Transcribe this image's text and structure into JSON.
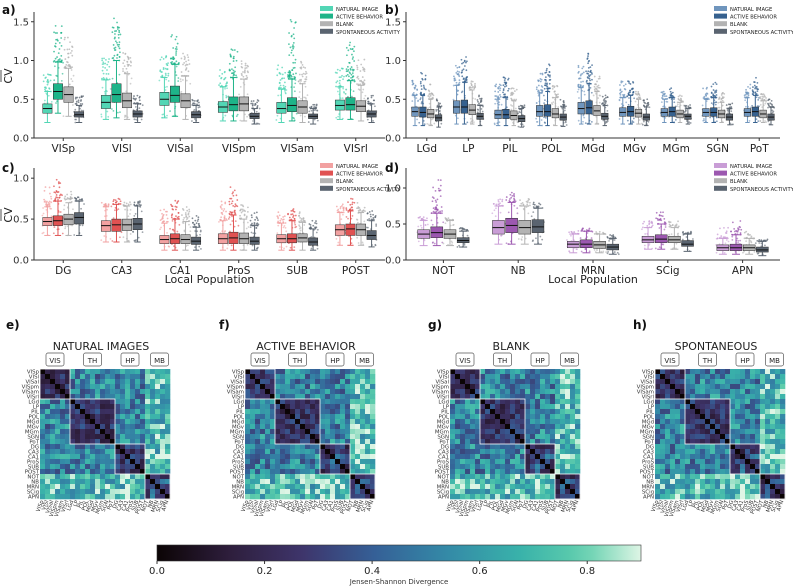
{
  "figure": {
    "legend_entries": [
      "NATURAL IMAGE",
      "ACTIVE BEHAVIOR",
      "BLANK",
      "SPONTANEOUS ACTIVITY"
    ],
    "colorbar": {
      "label": "Jensen-Shannon Divergence",
      "ticks": [
        "0.0",
        "0.2",
        "0.4",
        "0.6",
        "0.8"
      ],
      "range": [
        0,
        0.9
      ]
    },
    "region_labels": [
      "VIS",
      "TH",
      "HP",
      "MB"
    ],
    "matrix_labels": [
      "VISp",
      "VISl",
      "VISal",
      "VISpm",
      "VISam",
      "VISrl",
      "LGd",
      "LP",
      "PIL",
      "POL",
      "MGd",
      "MGv",
      "MGm",
      "SGN",
      "PoT",
      "DG",
      "CA3",
      "CA1",
      "ProS",
      "SUB",
      "POST",
      "NOT",
      "NB",
      "MRN",
      "SCig",
      "APN"
    ]
  },
  "chart_data": [
    {
      "panel": "a)",
      "type": "box",
      "ylabel": "CV",
      "xlabel": "",
      "ylim": [
        0,
        1.6
      ],
      "yticks": [
        "0.0",
        "0.5",
        "1.0",
        "1.5"
      ],
      "palette": [
        "#52d6b5",
        "#1eb489",
        "#b3b3b3",
        "#5a6470"
      ],
      "categories": [
        "VISp",
        "VISl",
        "VISal",
        "VISpm",
        "VISam",
        "VISrl"
      ],
      "series": [
        {
          "name": "NATURAL IMAGE",
          "medians": [
            0.38,
            0.46,
            0.5,
            0.4,
            0.38,
            0.42
          ],
          "q1": [
            0.32,
            0.38,
            0.42,
            0.33,
            0.32,
            0.36
          ],
          "q3": [
            0.44,
            0.55,
            0.59,
            0.47,
            0.46,
            0.49
          ],
          "whisk_lo": [
            0.2,
            0.24,
            0.26,
            0.22,
            0.2,
            0.24
          ],
          "whisk_hi": [
            0.6,
            0.75,
            0.78,
            0.66,
            0.63,
            0.66
          ],
          "max": [
            0.85,
            1.05,
            1.1,
            0.9,
            0.95,
            0.9
          ]
        },
        {
          "name": "ACTIVE BEHAVIOR",
          "medians": [
            0.6,
            0.56,
            0.55,
            0.43,
            0.42,
            0.43
          ],
          "q1": [
            0.5,
            0.46,
            0.46,
            0.35,
            0.34,
            0.36
          ],
          "q3": [
            0.7,
            0.7,
            0.67,
            0.53,
            0.52,
            0.52
          ],
          "whisk_lo": [
            0.32,
            0.26,
            0.28,
            0.22,
            0.22,
            0.24
          ],
          "whisk_hi": [
            0.98,
            1.0,
            0.95,
            0.78,
            0.76,
            0.74
          ],
          "max": [
            1.45,
            1.55,
            1.35,
            1.15,
            1.55,
            1.3
          ]
        },
        {
          "name": "BLANK",
          "medians": [
            0.56,
            0.48,
            0.48,
            0.44,
            0.4,
            0.41
          ],
          "q1": [
            0.46,
            0.39,
            0.39,
            0.35,
            0.32,
            0.34
          ],
          "q3": [
            0.66,
            0.58,
            0.57,
            0.53,
            0.48,
            0.48
          ],
          "whisk_lo": [
            0.28,
            0.24,
            0.24,
            0.22,
            0.2,
            0.22
          ],
          "whisk_hi": [
            0.9,
            0.83,
            0.8,
            0.76,
            0.7,
            0.68
          ],
          "max": [
            1.3,
            1.1,
            1.1,
            1.0,
            1.0,
            1.05
          ]
        },
        {
          "name": "SPONTANEOUS ACTIVITY",
          "medians": [
            0.3,
            0.31,
            0.3,
            0.28,
            0.28,
            0.31
          ],
          "q1": [
            0.27,
            0.27,
            0.26,
            0.25,
            0.25,
            0.27
          ],
          "q3": [
            0.34,
            0.35,
            0.34,
            0.32,
            0.31,
            0.35
          ],
          "whisk_lo": [
            0.2,
            0.2,
            0.2,
            0.18,
            0.18,
            0.2
          ],
          "whisk_hi": [
            0.42,
            0.44,
            0.42,
            0.38,
            0.38,
            0.44
          ],
          "max": [
            0.55,
            0.55,
            0.5,
            0.5,
            0.45,
            0.55
          ]
        }
      ]
    },
    {
      "panel": "b)",
      "type": "box",
      "ylabel": "",
      "xlabel": "",
      "ylim": [
        0,
        1.6
      ],
      "yticks": [
        "0.0",
        "0.5",
        "1.0",
        "1.5"
      ],
      "palette": [
        "#6f95bd",
        "#36618f",
        "#b3b3b3",
        "#5a6470"
      ],
      "categories": [
        "LGd",
        "LP",
        "PIL",
        "POL",
        "MGd",
        "MGv",
        "MGm",
        "SGN",
        "PoT"
      ],
      "series": [
        {
          "name": "NATURAL IMAGE",
          "medians": [
            0.34,
            0.4,
            0.3,
            0.34,
            0.38,
            0.33,
            0.33,
            0.33,
            0.33
          ],
          "q1": [
            0.28,
            0.32,
            0.25,
            0.28,
            0.31,
            0.28,
            0.28,
            0.28,
            0.28
          ],
          "q3": [
            0.4,
            0.48,
            0.36,
            0.42,
            0.46,
            0.39,
            0.38,
            0.38,
            0.38
          ],
          "whisk_lo": [
            0.16,
            0.18,
            0.16,
            0.16,
            0.18,
            0.18,
            0.2,
            0.2,
            0.2
          ],
          "whisk_hi": [
            0.55,
            0.68,
            0.5,
            0.58,
            0.65,
            0.52,
            0.5,
            0.5,
            0.52
          ],
          "max": [
            0.75,
            0.95,
            0.7,
            0.85,
            0.95,
            0.75,
            0.6,
            0.65,
            0.7
          ]
        },
        {
          "name": "ACTIVE BEHAVIOR",
          "medians": [
            0.33,
            0.4,
            0.3,
            0.34,
            0.39,
            0.34,
            0.34,
            0.33,
            0.34
          ],
          "q1": [
            0.27,
            0.32,
            0.25,
            0.28,
            0.31,
            0.28,
            0.28,
            0.28,
            0.28
          ],
          "q3": [
            0.4,
            0.49,
            0.37,
            0.43,
            0.48,
            0.41,
            0.4,
            0.39,
            0.4
          ],
          "whisk_lo": [
            0.16,
            0.18,
            0.16,
            0.16,
            0.18,
            0.18,
            0.2,
            0.2,
            0.2
          ],
          "whisk_hi": [
            0.55,
            0.72,
            0.52,
            0.6,
            0.7,
            0.55,
            0.52,
            0.52,
            0.55
          ],
          "max": [
            0.85,
            1.05,
            0.8,
            1.0,
            1.1,
            0.8,
            0.65,
            0.75,
            0.8
          ]
        },
        {
          "name": "BLANK",
          "medians": [
            0.31,
            0.36,
            0.29,
            0.31,
            0.35,
            0.32,
            0.31,
            0.31,
            0.31
          ],
          "q1": [
            0.26,
            0.3,
            0.24,
            0.26,
            0.29,
            0.27,
            0.26,
            0.26,
            0.26
          ],
          "q3": [
            0.37,
            0.43,
            0.35,
            0.38,
            0.42,
            0.37,
            0.36,
            0.36,
            0.36
          ],
          "whisk_lo": [
            0.16,
            0.18,
            0.16,
            0.16,
            0.18,
            0.18,
            0.2,
            0.2,
            0.2
          ],
          "whisk_hi": [
            0.5,
            0.62,
            0.48,
            0.52,
            0.6,
            0.5,
            0.46,
            0.46,
            0.48
          ],
          "max": [
            0.7,
            0.8,
            0.65,
            0.7,
            0.8,
            0.65,
            0.55,
            0.6,
            0.6
          ]
        },
        {
          "name": "SPONTANEOUS ACTIVITY",
          "medians": [
            0.26,
            0.28,
            0.25,
            0.27,
            0.28,
            0.27,
            0.28,
            0.27,
            0.27
          ],
          "q1": [
            0.22,
            0.24,
            0.21,
            0.23,
            0.24,
            0.23,
            0.24,
            0.23,
            0.23
          ],
          "q3": [
            0.3,
            0.32,
            0.29,
            0.31,
            0.32,
            0.31,
            0.31,
            0.31,
            0.31
          ],
          "whisk_lo": [
            0.14,
            0.16,
            0.14,
            0.15,
            0.16,
            0.16,
            0.18,
            0.17,
            0.17
          ],
          "whisk_hi": [
            0.4,
            0.42,
            0.38,
            0.4,
            0.42,
            0.4,
            0.38,
            0.38,
            0.4
          ],
          "max": [
            0.5,
            0.55,
            0.45,
            0.5,
            0.55,
            0.5,
            0.45,
            0.45,
            0.5
          ]
        }
      ]
    },
    {
      "panel": "c)",
      "type": "box",
      "ylabel": "CV",
      "xlabel": "Local Population",
      "ylim": [
        0,
        1.1
      ],
      "yticks": [
        "0.0",
        "0.5",
        "1.0"
      ],
      "palette": [
        "#f2a1a1",
        "#e05252",
        "#b3b3b3",
        "#5a6470"
      ],
      "categories": [
        "DG",
        "CA3",
        "CA1",
        "ProS",
        "SUB",
        "POST"
      ],
      "series": [
        {
          "name": "NATURAL IMAGE",
          "medians": [
            0.47,
            0.42,
            0.25,
            0.26,
            0.26,
            0.37
          ],
          "q1": [
            0.42,
            0.35,
            0.2,
            0.2,
            0.21,
            0.3
          ],
          "q3": [
            0.52,
            0.48,
            0.3,
            0.32,
            0.31,
            0.43
          ],
          "whisk_lo": [
            0.3,
            0.22,
            0.12,
            0.12,
            0.12,
            0.18
          ],
          "whisk_hi": [
            0.65,
            0.65,
            0.45,
            0.48,
            0.45,
            0.58
          ],
          "max": [
            0.9,
            0.72,
            0.62,
            0.72,
            0.6,
            0.7
          ]
        },
        {
          "name": "ACTIVE BEHAVIOR",
          "medians": [
            0.48,
            0.43,
            0.26,
            0.27,
            0.26,
            0.38
          ],
          "q1": [
            0.42,
            0.35,
            0.2,
            0.2,
            0.21,
            0.3
          ],
          "q3": [
            0.54,
            0.5,
            0.32,
            0.34,
            0.32,
            0.44
          ],
          "whisk_lo": [
            0.3,
            0.22,
            0.12,
            0.12,
            0.12,
            0.18
          ],
          "whisk_hi": [
            0.72,
            0.68,
            0.5,
            0.55,
            0.48,
            0.6
          ],
          "max": [
            1.0,
            0.75,
            0.75,
            0.9,
            0.65,
            0.75
          ]
        },
        {
          "name": "BLANK",
          "medians": [
            0.5,
            0.43,
            0.25,
            0.26,
            0.27,
            0.37
          ],
          "q1": [
            0.43,
            0.36,
            0.2,
            0.2,
            0.22,
            0.3
          ],
          "q3": [
            0.56,
            0.5,
            0.31,
            0.33,
            0.32,
            0.44
          ],
          "whisk_lo": [
            0.3,
            0.22,
            0.12,
            0.12,
            0.12,
            0.18
          ],
          "whisk_hi": [
            0.7,
            0.66,
            0.47,
            0.5,
            0.46,
            0.58
          ],
          "max": [
            0.85,
            0.72,
            0.65,
            0.7,
            0.6,
            0.7
          ]
        },
        {
          "name": "SPONTANEOUS ACTIVITY",
          "medians": [
            0.52,
            0.44,
            0.23,
            0.23,
            0.22,
            0.3
          ],
          "q1": [
            0.44,
            0.37,
            0.19,
            0.19,
            0.18,
            0.25
          ],
          "q3": [
            0.58,
            0.51,
            0.28,
            0.28,
            0.27,
            0.36
          ],
          "whisk_lo": [
            0.3,
            0.22,
            0.12,
            0.12,
            0.12,
            0.16
          ],
          "whisk_hi": [
            0.72,
            0.66,
            0.4,
            0.42,
            0.38,
            0.48
          ],
          "max": [
            0.8,
            0.72,
            0.55,
            0.6,
            0.5,
            0.6
          ]
        }
      ]
    },
    {
      "panel": "d)",
      "type": "box",
      "ylabel": "",
      "xlabel": "Local Population",
      "ylim": [
        0,
        1.25
      ],
      "yticks": [
        "0.0",
        "0.5",
        "1.0"
      ],
      "palette": [
        "#c99dd6",
        "#9c58b0",
        "#b3b3b3",
        "#5a6470"
      ],
      "categories": [
        "NOT",
        "NB",
        "MRN",
        "SCig",
        "APN"
      ],
      "series": [
        {
          "name": "NATURAL IMAGE",
          "medians": [
            0.36,
            0.45,
            0.22,
            0.28,
            0.17
          ],
          "q1": [
            0.3,
            0.36,
            0.17,
            0.24,
            0.13
          ],
          "q3": [
            0.42,
            0.55,
            0.26,
            0.33,
            0.21
          ],
          "whisk_lo": [
            0.2,
            0.22,
            0.1,
            0.15,
            0.08
          ],
          "whisk_hi": [
            0.55,
            0.75,
            0.36,
            0.45,
            0.3
          ],
          "max": [
            0.6,
            0.85,
            0.42,
            0.55,
            0.45
          ]
        },
        {
          "name": "ACTIVE BEHAVIOR",
          "medians": [
            0.38,
            0.48,
            0.22,
            0.29,
            0.17
          ],
          "q1": [
            0.31,
            0.38,
            0.17,
            0.24,
            0.13
          ],
          "q3": [
            0.46,
            0.58,
            0.28,
            0.35,
            0.22
          ],
          "whisk_lo": [
            0.2,
            0.22,
            0.1,
            0.15,
            0.08
          ],
          "whisk_hi": [
            0.65,
            0.8,
            0.4,
            0.5,
            0.35
          ],
          "max": [
            1.15,
            0.95,
            0.45,
            0.7,
            0.55
          ]
        },
        {
          "name": "BLANK",
          "medians": [
            0.36,
            0.45,
            0.21,
            0.28,
            0.17
          ],
          "q1": [
            0.3,
            0.36,
            0.16,
            0.24,
            0.13
          ],
          "q3": [
            0.42,
            0.55,
            0.26,
            0.33,
            0.21
          ],
          "whisk_lo": [
            0.2,
            0.22,
            0.1,
            0.15,
            0.08
          ],
          "whisk_hi": [
            0.55,
            0.75,
            0.36,
            0.45,
            0.3
          ],
          "max": [
            0.6,
            0.85,
            0.4,
            0.55,
            0.4
          ]
        },
        {
          "name": "SPONTANEOUS ACTIVITY",
          "medians": [
            0.27,
            0.46,
            0.18,
            0.22,
            0.14
          ],
          "q1": [
            0.24,
            0.38,
            0.14,
            0.19,
            0.11
          ],
          "q3": [
            0.31,
            0.56,
            0.22,
            0.27,
            0.18
          ],
          "whisk_lo": [
            0.18,
            0.22,
            0.08,
            0.12,
            0.06
          ],
          "whisk_hi": [
            0.4,
            0.72,
            0.3,
            0.36,
            0.26
          ],
          "max": [
            0.45,
            0.8,
            0.35,
            0.4,
            0.3
          ]
        }
      ]
    },
    {
      "panel": "e)",
      "type": "heatmap",
      "title": "NATURAL IMAGES"
    },
    {
      "panel": "f)",
      "type": "heatmap",
      "title": "ACTIVE BEHAVIOR"
    },
    {
      "panel": "g)",
      "type": "heatmap",
      "title": "BLANK"
    },
    {
      "panel": "h)",
      "type": "heatmap",
      "title": "SPONTANEOUS"
    }
  ]
}
